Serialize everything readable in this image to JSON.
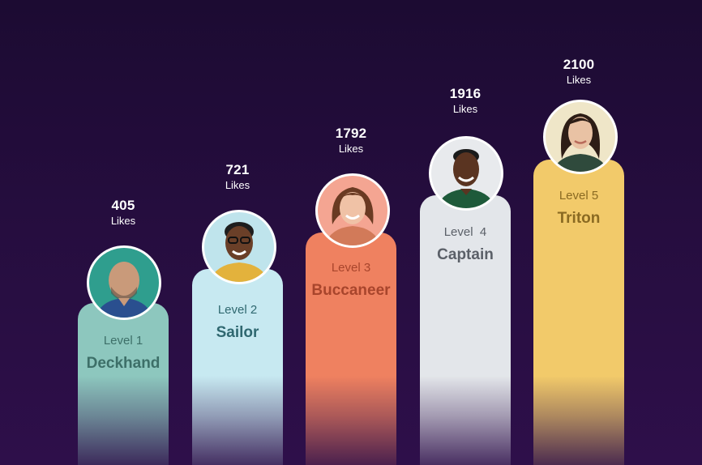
{
  "likes_unit": "Likes",
  "tiers": [
    {
      "count": "405",
      "level": "Level 1",
      "title": "Deckhand",
      "bar_color": "#8dc7be",
      "text_color": "#3d6f68",
      "avatar_bg": "#2f9e8e",
      "skin": "#c99a7a",
      "shirt": "#2a4f8f",
      "hair": "#a9a9a9"
    },
    {
      "count": "721",
      "level": "Level 2",
      "title": "Sailor",
      "bar_color": "#c7e9f1",
      "text_color": "#2f6870",
      "avatar_bg": "#bfe4ec",
      "skin": "#6a3f28",
      "shirt": "#e3b23c",
      "hair": "#1e1e1e"
    },
    {
      "count": "1792",
      "level": "Level 3",
      "title": "Buccaneer",
      "bar_color": "#ef8160",
      "text_color": "#a8452c",
      "avatar_bg": "#f4a592",
      "skin": "#f0c2a6",
      "shirt": "#d27a59",
      "hair": "#6a3a22"
    },
    {
      "count": "1916",
      "level": "Level  4",
      "title": "Captain",
      "bar_color": "#e3e6ea",
      "text_color": "#5b6068",
      "avatar_bg": "#e8eaed",
      "skin": "#5a3421",
      "shirt": "#1e5a3a",
      "hair": "#1b1b1b"
    },
    {
      "count": "2100",
      "level": "Level 5",
      "title": "Triton",
      "bar_color": "#f2ca6a",
      "text_color": "#8a6a22",
      "avatar_bg": "#efe6c8",
      "skin": "#e9c2a4",
      "shirt": "#2f4a3c",
      "hair": "#2d1d16"
    }
  ]
}
